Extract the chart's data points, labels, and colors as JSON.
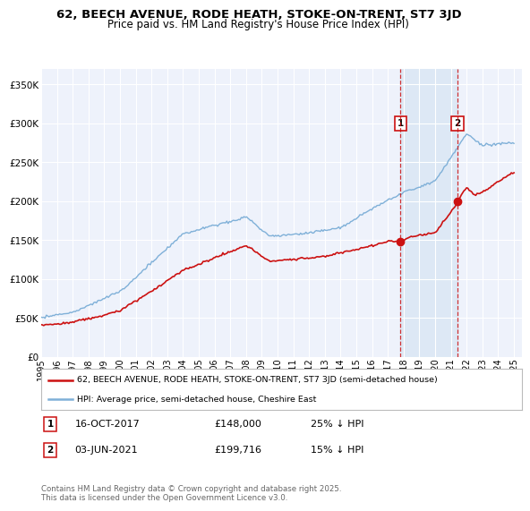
{
  "title": "62, BEECH AVENUE, RODE HEATH, STOKE-ON-TRENT, ST7 3JD",
  "subtitle": "Price paid vs. HM Land Registry's House Price Index (HPI)",
  "ylim": [
    0,
    370000
  ],
  "yticks": [
    0,
    50000,
    100000,
    150000,
    200000,
    250000,
    300000,
    350000
  ],
  "ytick_labels": [
    "£0",
    "£50K",
    "£100K",
    "£150K",
    "£200K",
    "£250K",
    "£300K",
    "£350K"
  ],
  "background_color": "#ffffff",
  "plot_bg_color": "#eef2fb",
  "grid_color": "#ffffff",
  "hpi_color": "#7fb0d8",
  "price_color": "#cc1111",
  "shade_color": "#dde8f5",
  "marker1_date_x": 2017.8,
  "marker2_date_x": 2021.42,
  "marker1_y": 148000,
  "marker2_y": 199716,
  "legend_label1": "62, BEECH AVENUE, RODE HEATH, STOKE-ON-TRENT, ST7 3JD (semi-detached house)",
  "legend_label2": "HPI: Average price, semi-detached house, Cheshire East",
  "footer": "Contains HM Land Registry data © Crown copyright and database right 2025.\nThis data is licensed under the Open Government Licence v3.0.",
  "xmin": 1995,
  "xmax": 2025.5,
  "xticks": [
    1995,
    1996,
    1997,
    1998,
    1999,
    2000,
    2001,
    2002,
    2003,
    2004,
    2005,
    2006,
    2007,
    2008,
    2009,
    2010,
    2011,
    2012,
    2013,
    2014,
    2015,
    2016,
    2017,
    2018,
    2019,
    2020,
    2021,
    2022,
    2023,
    2024,
    2025
  ],
  "ann1_date": "16-OCT-2017",
  "ann1_price": "£148,000",
  "ann1_pct": "25% ↓ HPI",
  "ann2_date": "03-JUN-2021",
  "ann2_price": "£199,716",
  "ann2_pct": "15% ↓ HPI"
}
